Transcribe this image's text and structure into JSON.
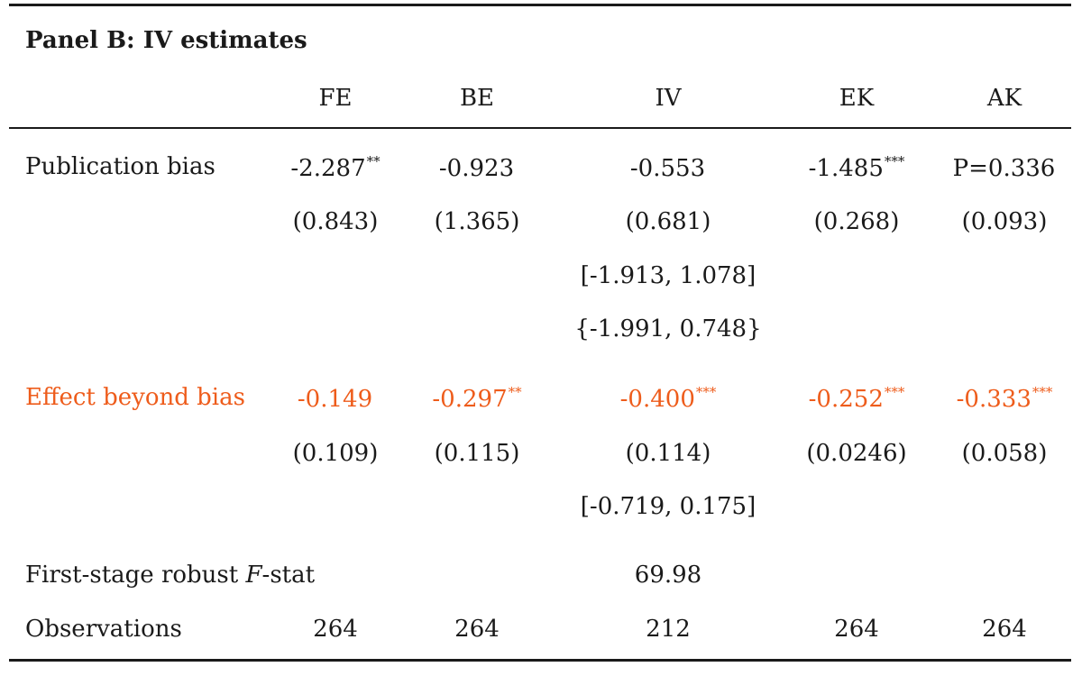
{
  "panel_title": "Panel B: IV estimates",
  "columns": [
    "FE",
    "BE",
    "IV",
    "EK",
    "AK"
  ],
  "accent_color": "#ee5c1b",
  "rows": {
    "pub_bias": {
      "label": "Publication bias",
      "values": [
        {
          "v": "-2.287",
          "s": "**"
        },
        {
          "v": "-0.923",
          "s": ""
        },
        {
          "v": "-0.553",
          "s": ""
        },
        {
          "v": "-1.485",
          "s": "***"
        },
        {
          "v": "P=0.336",
          "s": ""
        }
      ]
    },
    "pub_bias_se": [
      "(0.843)",
      "(1.365)",
      "(0.681)",
      "(0.268)",
      "(0.093)"
    ],
    "pub_bias_ci1": "[-1.913, 1.078]",
    "pub_bias_ci2": "{-1.991, 0.748}",
    "effect": {
      "label": "Effect beyond bias",
      "values": [
        {
          "v": "-0.149",
          "s": ""
        },
        {
          "v": "-0.297",
          "s": "**"
        },
        {
          "v": "-0.400",
          "s": "***"
        },
        {
          "v": "-0.252",
          "s": "***"
        },
        {
          "v": "-0.333",
          "s": "***"
        }
      ]
    },
    "effect_se": [
      "(0.109)",
      "(0.115)",
      "(0.114)",
      "(0.0246)",
      "(0.058)"
    ],
    "effect_ci": "[-0.719, 0.175]",
    "fstat": {
      "label_prefix": "First-stage robust ",
      "label_var": "F",
      "label_suffix": "-stat",
      "value": "69.98"
    },
    "observations": {
      "label": "Observations",
      "values": [
        "264",
        "264",
        "212",
        "264",
        "264"
      ]
    }
  }
}
